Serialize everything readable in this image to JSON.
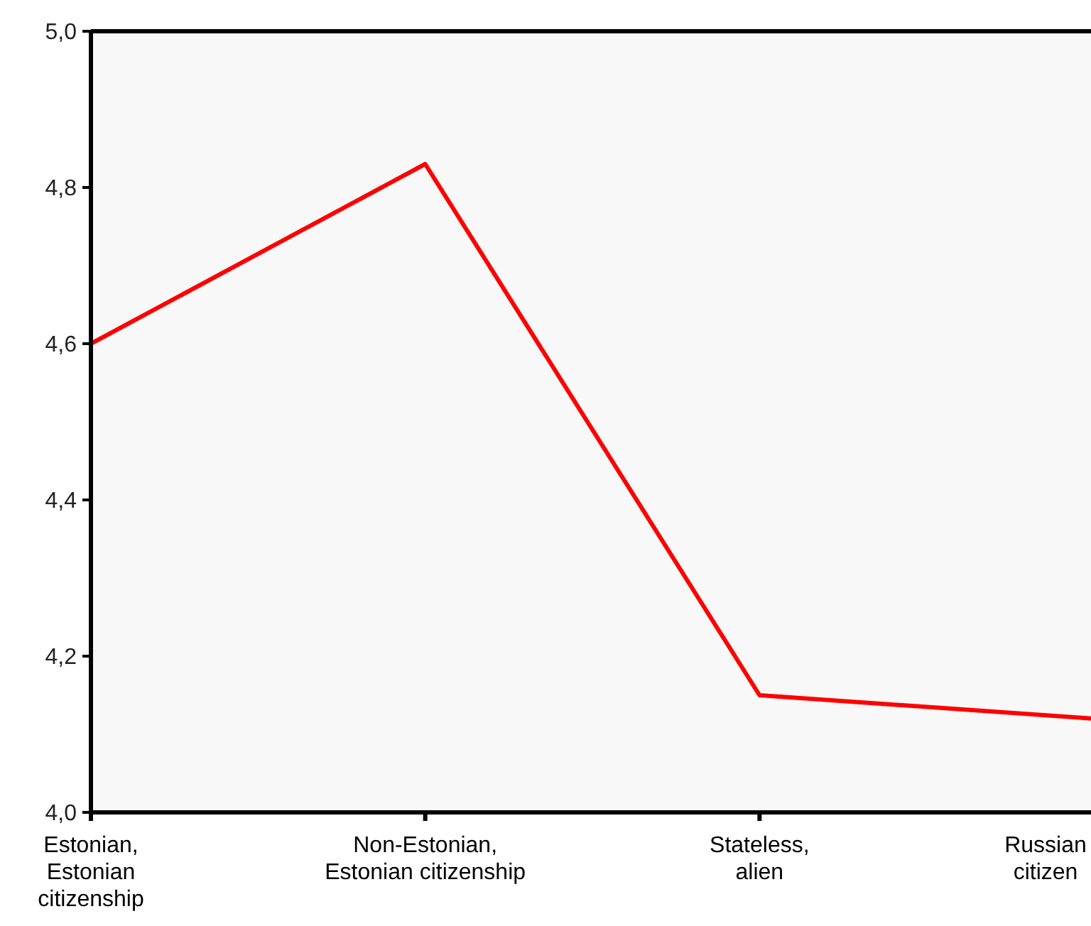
{
  "chart_data": {
    "type": "line",
    "categories": [
      "Estonian,\nEstonian\ncitizenship",
      "Non-Estonian,\nEstonian citizenship",
      "Stateless,\nalien",
      "Russian\ncitizen"
    ],
    "series": [
      {
        "color": "#ff0000",
        "values": [
          4.6,
          4.83,
          4.15,
          4.12
        ]
      }
    ],
    "ylim": [
      4.0,
      5.0
    ],
    "yticks": [
      {
        "value": 4.0,
        "label": "4,0"
      },
      {
        "value": 4.2,
        "label": "4,2"
      },
      {
        "value": 4.4,
        "label": "4,4"
      },
      {
        "value": 4.6,
        "label": "4,6"
      },
      {
        "value": 4.8,
        "label": "4,8"
      },
      {
        "value": 5.0,
        "label": "5,0"
      }
    ],
    "grid": false,
    "marker": "none",
    "line_style": "solid"
  }
}
